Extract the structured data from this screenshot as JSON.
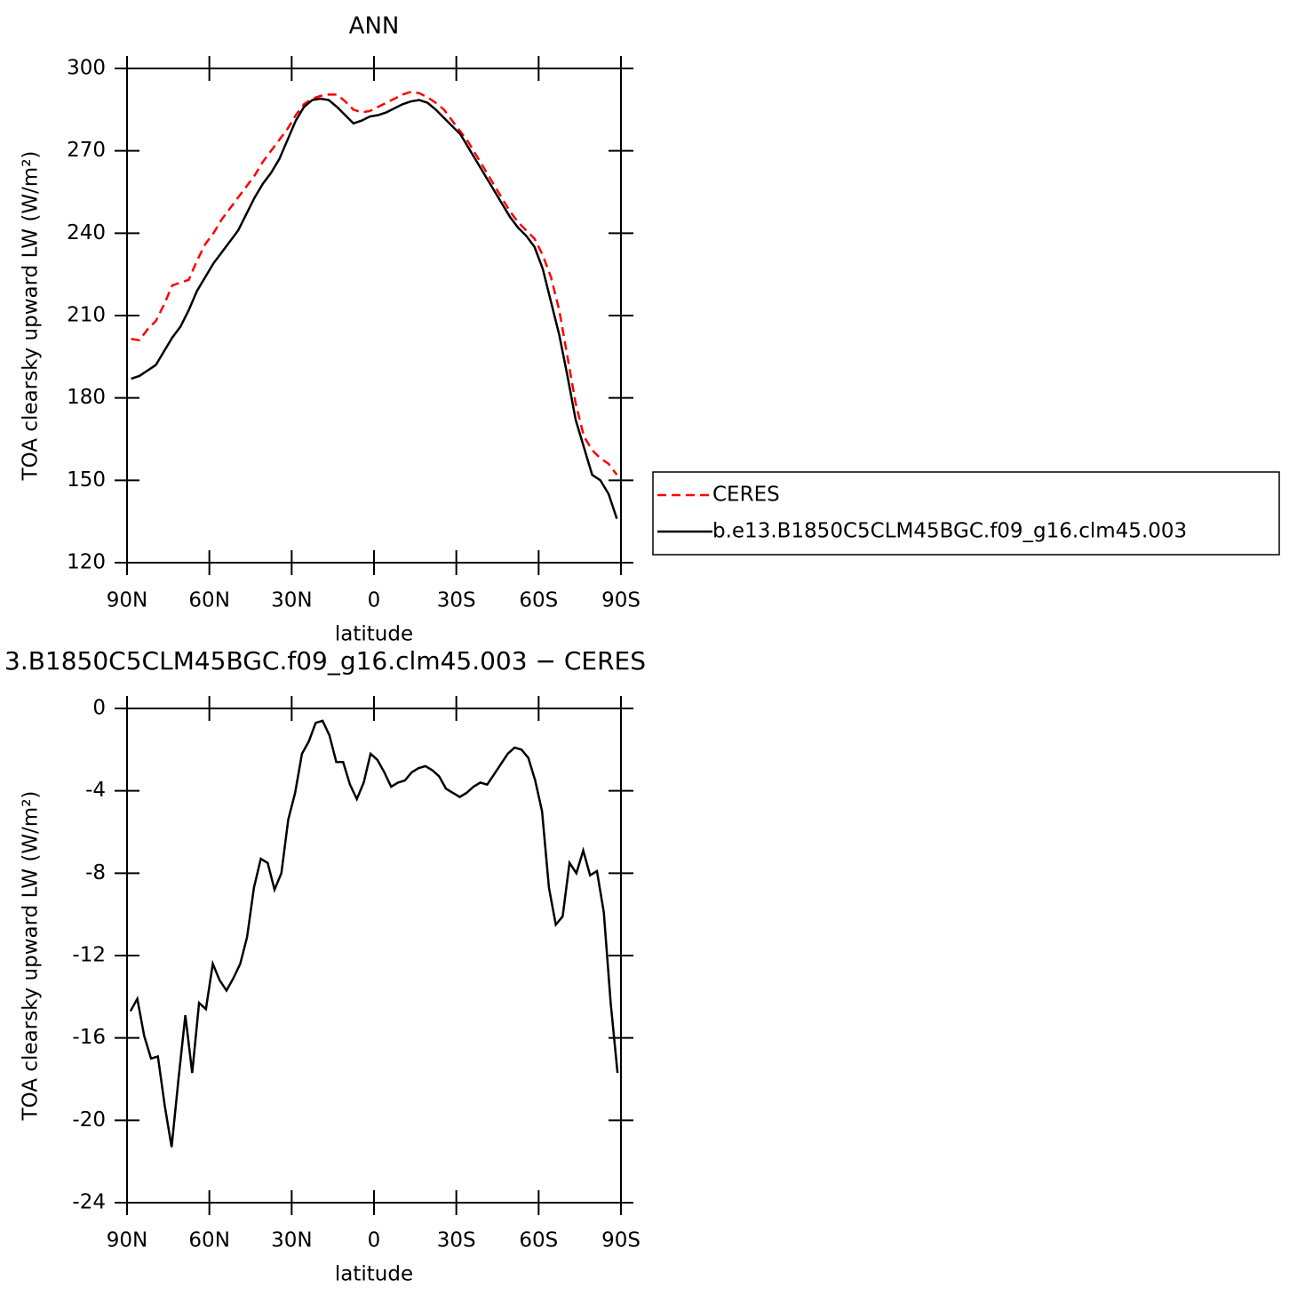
{
  "chart_data": [
    {
      "type": "line",
      "title": "ANN",
      "x_label": "latitude",
      "y_label": "TOA clearsky upward LW (W/m²)",
      "xlim": [
        90,
        -90
      ],
      "ylim": [
        120,
        300
      ],
      "xticks": [
        {
          "value": 90,
          "label": "90N"
        },
        {
          "value": 60,
          "label": "60N"
        },
        {
          "value": 30,
          "label": "30N"
        },
        0,
        {
          "value": -30,
          "label": "30S"
        },
        {
          "value": -60,
          "label": "60S"
        },
        {
          "value": -90,
          "label": "90S"
        }
      ],
      "yticks": [
        120,
        150,
        180,
        210,
        240,
        270,
        300
      ],
      "x": [
        88.5,
        85.5,
        82.5,
        79.5,
        76.5,
        73.5,
        70.5,
        67.5,
        64.5,
        61.5,
        58.5,
        55.5,
        52.5,
        49.5,
        46.5,
        43.5,
        40.5,
        37.5,
        34.5,
        31.5,
        28.5,
        25.5,
        22.5,
        19.5,
        16.5,
        13.5,
        10.5,
        7.5,
        4.5,
        1.5,
        -1.5,
        -4.5,
        -7.5,
        -10.5,
        -13.5,
        -16.5,
        -19.5,
        -22.5,
        -25.5,
        -28.5,
        -31.5,
        -34.5,
        -37.5,
        -40.5,
        -43.5,
        -46.5,
        -49.5,
        -52.5,
        -55.5,
        -58.5,
        -61.5,
        -64.5,
        -67.5,
        -70.5,
        -73.5,
        -76.5,
        -79.5,
        -82.5,
        -85.5,
        -88.5
      ],
      "series": [
        {
          "name": "CERES",
          "color": "#ff0000",
          "dashed": true,
          "values": [
            201.5,
            201,
            205,
            208,
            214,
            221,
            222,
            223,
            230,
            236,
            240,
            245,
            249,
            253,
            257,
            261,
            266,
            270,
            274,
            278,
            283,
            287,
            289,
            290,
            290.5,
            290.5,
            288,
            285,
            284,
            284.5,
            286,
            287.5,
            289,
            290.5,
            291.5,
            291,
            289.5,
            287.5,
            285,
            281,
            277,
            273,
            268,
            263,
            258,
            253,
            248,
            244,
            241,
            238,
            232,
            224,
            212,
            195,
            178,
            166,
            161,
            158,
            156,
            152
          ]
        },
        {
          "name": "b.e13.B1850C5CLM45BGC.f09_g16.clm45.003",
          "color": "#000000",
          "dashed": false,
          "values": [
            187,
            188,
            190,
            192,
            197,
            202,
            206,
            212,
            219,
            224,
            229,
            233,
            237,
            241,
            247,
            253,
            258,
            262,
            267,
            274,
            281,
            286,
            288.5,
            289,
            288.5,
            286,
            283,
            280,
            281,
            282.5,
            283,
            284,
            285.5,
            287,
            288,
            288.5,
            287.5,
            285,
            282,
            279,
            276,
            271,
            266,
            261,
            256,
            251,
            246,
            242,
            239,
            235,
            227,
            215,
            203,
            188,
            172,
            162,
            152,
            150,
            145,
            136
          ]
        }
      ]
    },
    {
      "type": "line",
      "title": "3.B1850C5CLM45BGC.f09_g16.clm45.003 − CERES",
      "x_label": "latitude",
      "y_label": "TOA clearsky upward LW (W/m²)",
      "xlim": [
        90,
        -90
      ],
      "ylim": [
        -24,
        0
      ],
      "xticks": [
        {
          "value": 90,
          "label": "90N"
        },
        {
          "value": 60,
          "label": "60N"
        },
        {
          "value": 30,
          "label": "30N"
        },
        0,
        {
          "value": -30,
          "label": "30S"
        },
        {
          "value": -60,
          "label": "60S"
        },
        {
          "value": -90,
          "label": "90S"
        }
      ],
      "yticks": [
        -24,
        -20,
        -16,
        -12,
        -8,
        -4,
        0
      ],
      "x": [
        88.75,
        86.25,
        83.75,
        81.25,
        78.75,
        76.25,
        73.75,
        71.25,
        68.75,
        66.25,
        63.75,
        61.25,
        58.75,
        56.25,
        53.75,
        51.25,
        48.75,
        46.25,
        43.75,
        41.25,
        38.75,
        36.25,
        33.75,
        31.25,
        28.75,
        26.25,
        23.75,
        21.25,
        18.75,
        16.25,
        13.75,
        11.25,
        8.75,
        6.25,
        3.75,
        1.25,
        -1.25,
        -3.75,
        -6.25,
        -8.75,
        -11.25,
        -13.75,
        -16.25,
        -18.75,
        -21.25,
        -23.75,
        -26.25,
        -28.75,
        -31.25,
        -33.75,
        -36.25,
        -38.75,
        -41.25,
        -43.75,
        -46.25,
        -48.75,
        -51.25,
        -53.75,
        -56.25,
        -58.75,
        -61.25,
        -63.75,
        -66.25,
        -68.75,
        -71.25,
        -73.75,
        -76.25,
        -78.75,
        -81.25,
        -83.75,
        -86.25,
        -88.75
      ],
      "series": [
        {
          "color": "#000000",
          "dashed": false,
          "values": [
            -14.7,
            -14.1,
            -15.9,
            -17.0,
            -16.9,
            -19.3,
            -21.3,
            -18.0,
            -14.9,
            -17.7,
            -14.3,
            -14.6,
            -12.4,
            -13.2,
            -13.7,
            -13.1,
            -12.4,
            -11.1,
            -8.7,
            -7.3,
            -7.5,
            -8.8,
            -8.0,
            -5.4,
            -4.1,
            -2.2,
            -1.6,
            -0.7,
            -0.6,
            -1.3,
            -2.6,
            -2.6,
            -3.7,
            -4.4,
            -3.6,
            -2.2,
            -2.5,
            -3.1,
            -3.8,
            -3.6,
            -3.5,
            -3.1,
            -2.9,
            -2.8,
            -3.0,
            -3.3,
            -3.9,
            -4.1,
            -4.3,
            -4.1,
            -3.8,
            -3.6,
            -3.7,
            -3.2,
            -2.7,
            -2.2,
            -1.9,
            -2.0,
            -2.4,
            -3.5,
            -5.0,
            -8.7,
            -10.5,
            -10.1,
            -7.5,
            -8.0,
            -6.9,
            -8.1,
            -7.9,
            -9.9,
            -14.3,
            -17.7
          ]
        }
      ]
    }
  ]
}
